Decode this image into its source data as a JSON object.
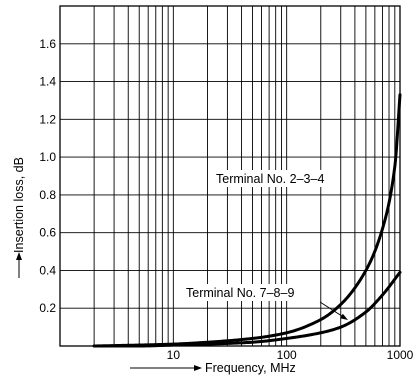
{
  "chart_data": {
    "type": "line",
    "title": "",
    "xlabel": "Frequency, MHz",
    "ylabel": "Insertion loss, dB",
    "xscale": "log",
    "xlim": [
      1,
      1000
    ],
    "ylim": [
      0,
      1.8
    ],
    "grid": true,
    "legend": "none",
    "x_ticks": [
      {
        "value": 10,
        "label": "10"
      },
      {
        "value": 100,
        "label": "100"
      },
      {
        "value": 1000,
        "label": "1000"
      }
    ],
    "y_ticks": [
      {
        "value": 0.2,
        "label": "0.2"
      },
      {
        "value": 0.4,
        "label": "0.4"
      },
      {
        "value": 0.6,
        "label": "0.6"
      },
      {
        "value": 0.8,
        "label": "0.8"
      },
      {
        "value": 1.0,
        "label": "1.0"
      },
      {
        "value": 1.2,
        "label": "1.2"
      },
      {
        "value": 1.4,
        "label": "1.4"
      },
      {
        "value": 1.6,
        "label": "1.6"
      }
    ],
    "series": [
      {
        "name": "Terminal No. 2–3–4",
        "x": [
          2,
          5,
          10,
          20,
          50,
          100,
          200,
          300,
          500,
          700,
          900,
          1000
        ],
        "y": [
          0.0,
          0.005,
          0.01,
          0.02,
          0.04,
          0.07,
          0.14,
          0.22,
          0.4,
          0.62,
          0.95,
          1.33
        ]
      },
      {
        "name": "Terminal No. 7–8–9",
        "x": [
          2,
          5,
          10,
          20,
          50,
          100,
          200,
          300,
          500,
          700,
          1000
        ],
        "y": [
          0.0,
          0.0,
          0.005,
          0.01,
          0.02,
          0.04,
          0.07,
          0.1,
          0.18,
          0.27,
          0.39
        ]
      }
    ],
    "annotations": [
      {
        "text": "Terminal No. 2–3–4",
        "series": 0
      },
      {
        "text": "Terminal No. 7–8–9",
        "series": 1
      }
    ]
  }
}
